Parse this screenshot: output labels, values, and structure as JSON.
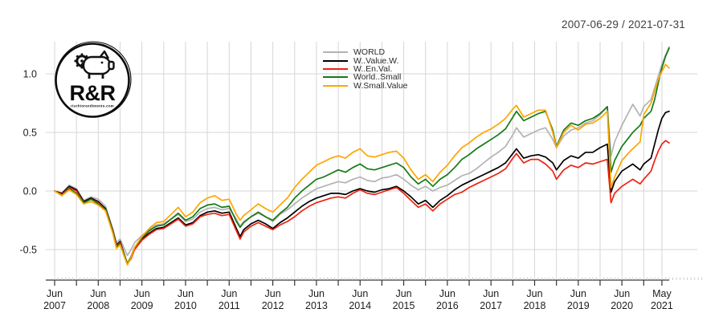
{
  "title": "2007-06-29 / 2021-07-31",
  "logo": {
    "text": "R&R",
    "subtext": "rischiorendimento.com"
  },
  "chart_data": {
    "type": "line",
    "title": "2007-06-29 / 2021-07-31",
    "xlabel": "",
    "ylabel": "",
    "x_unit": "months since 2007-06",
    "ylim": [
      -0.72,
      1.35
    ],
    "grid": true,
    "grid_color": "#d6d6d6",
    "axis_color": "#333333",
    "legend_position": "top-center",
    "y_ticks": [
      -0.5,
      0,
      0.5,
      1
    ],
    "x_ticks": [
      {
        "t": 0,
        "month": "Jun",
        "year": "2007"
      },
      {
        "t": 12,
        "month": "Jun",
        "year": "2008"
      },
      {
        "t": 24,
        "month": "Jun",
        "year": "2009"
      },
      {
        "t": 36,
        "month": "Jun",
        "year": "2010"
      },
      {
        "t": 48,
        "month": "Jun",
        "year": "2011"
      },
      {
        "t": 60,
        "month": "Jun",
        "year": "2012"
      },
      {
        "t": 72,
        "month": "Jun",
        "year": "2013"
      },
      {
        "t": 84,
        "month": "Jun",
        "year": "2014"
      },
      {
        "t": 96,
        "month": "Jun",
        "year": "2015"
      },
      {
        "t": 108,
        "month": "Jun",
        "year": "2016"
      },
      {
        "t": 120,
        "month": "Jun",
        "year": "2017"
      },
      {
        "t": 132,
        "month": "Jun",
        "year": "2018"
      },
      {
        "t": 144,
        "month": "Jun",
        "year": "2019"
      },
      {
        "t": 156,
        "month": "Jun",
        "year": "2020"
      },
      {
        "t": 167,
        "month": "May",
        "year": "2021"
      }
    ],
    "x_months": [
      0,
      2,
      4,
      6,
      8,
      10,
      12,
      14,
      16,
      17,
      18,
      20,
      21,
      22,
      24,
      26,
      28,
      30,
      32,
      34,
      36,
      38,
      40,
      42,
      44,
      46,
      48,
      50,
      51,
      52,
      54,
      56,
      58,
      60,
      62,
      64,
      66,
      68,
      70,
      72,
      74,
      76,
      78,
      80,
      82,
      84,
      86,
      88,
      90,
      92,
      94,
      96,
      98,
      100,
      102,
      104,
      106,
      108,
      110,
      112,
      114,
      116,
      118,
      120,
      122,
      124,
      126,
      127,
      129,
      131,
      133,
      135,
      137,
      138,
      140,
      142,
      144,
      146,
      148,
      150,
      152,
      153,
      154,
      156,
      158,
      159,
      161,
      162,
      164,
      165,
      166,
      167,
      168,
      169
    ],
    "series": [
      {
        "name": "WORLD",
        "color": "#b3b3b3",
        "values": [
          0.0,
          -0.02,
          0.05,
          0.02,
          -0.08,
          -0.05,
          -0.07,
          -0.13,
          -0.32,
          -0.44,
          -0.41,
          -0.55,
          -0.5,
          -0.44,
          -0.38,
          -0.33,
          -0.29,
          -0.28,
          -0.24,
          -0.2,
          -0.26,
          -0.24,
          -0.18,
          -0.15,
          -0.14,
          -0.16,
          -0.15,
          -0.24,
          -0.3,
          -0.26,
          -0.22,
          -0.19,
          -0.22,
          -0.26,
          -0.2,
          -0.16,
          -0.11,
          -0.06,
          -0.02,
          0.02,
          0.04,
          0.06,
          0.08,
          0.07,
          0.1,
          0.12,
          0.09,
          0.08,
          0.11,
          0.12,
          0.14,
          0.1,
          0.05,
          0.01,
          0.04,
          0.0,
          0.03,
          0.05,
          0.09,
          0.13,
          0.15,
          0.19,
          0.24,
          0.29,
          0.33,
          0.38,
          0.48,
          0.54,
          0.46,
          0.49,
          0.52,
          0.54,
          0.44,
          0.37,
          0.47,
          0.52,
          0.54,
          0.58,
          0.6,
          0.65,
          0.72,
          0.3,
          0.42,
          0.56,
          0.68,
          0.74,
          0.64,
          0.72,
          0.78,
          0.88,
          0.98,
          1.08,
          1.16,
          1.23
        ]
      },
      {
        "name": "W..Value.W.",
        "color": "#000000",
        "values": [
          0.0,
          -0.02,
          0.04,
          0.01,
          -0.09,
          -0.06,
          -0.09,
          -0.15,
          -0.34,
          -0.46,
          -0.43,
          -0.62,
          -0.57,
          -0.49,
          -0.41,
          -0.36,
          -0.32,
          -0.31,
          -0.27,
          -0.23,
          -0.29,
          -0.27,
          -0.21,
          -0.18,
          -0.17,
          -0.19,
          -0.18,
          -0.32,
          -0.39,
          -0.33,
          -0.28,
          -0.25,
          -0.28,
          -0.32,
          -0.27,
          -0.23,
          -0.18,
          -0.13,
          -0.09,
          -0.06,
          -0.04,
          -0.02,
          -0.02,
          -0.03,
          0.0,
          0.02,
          0.0,
          -0.01,
          0.01,
          0.02,
          0.04,
          0.0,
          -0.05,
          -0.11,
          -0.08,
          -0.14,
          -0.08,
          -0.04,
          0.01,
          0.05,
          0.08,
          0.11,
          0.14,
          0.17,
          0.2,
          0.24,
          0.32,
          0.36,
          0.28,
          0.3,
          0.31,
          0.29,
          0.24,
          0.18,
          0.26,
          0.3,
          0.28,
          0.33,
          0.33,
          0.37,
          0.4,
          -0.01,
          0.08,
          0.17,
          0.21,
          0.23,
          0.18,
          0.23,
          0.28,
          0.4,
          0.52,
          0.62,
          0.67,
          0.68
        ]
      },
      {
        "name": "W..En.Val.",
        "color": "#ee2211",
        "values": [
          0.0,
          -0.03,
          0.03,
          0.0,
          -0.1,
          -0.07,
          -0.1,
          -0.16,
          -0.35,
          -0.47,
          -0.44,
          -0.62,
          -0.58,
          -0.5,
          -0.42,
          -0.37,
          -0.33,
          -0.32,
          -0.28,
          -0.24,
          -0.3,
          -0.28,
          -0.22,
          -0.2,
          -0.19,
          -0.21,
          -0.2,
          -0.34,
          -0.41,
          -0.35,
          -0.3,
          -0.27,
          -0.3,
          -0.33,
          -0.29,
          -0.26,
          -0.22,
          -0.17,
          -0.13,
          -0.1,
          -0.08,
          -0.06,
          -0.05,
          -0.06,
          -0.02,
          0.01,
          -0.02,
          -0.03,
          -0.01,
          0.01,
          0.03,
          -0.02,
          -0.08,
          -0.14,
          -0.11,
          -0.17,
          -0.11,
          -0.07,
          -0.03,
          -0.01,
          0.03,
          0.06,
          0.09,
          0.12,
          0.15,
          0.19,
          0.28,
          0.32,
          0.24,
          0.27,
          0.27,
          0.23,
          0.17,
          0.1,
          0.18,
          0.22,
          0.2,
          0.24,
          0.23,
          0.25,
          0.27,
          -0.1,
          -0.02,
          0.04,
          0.08,
          0.1,
          0.06,
          0.1,
          0.17,
          0.26,
          0.34,
          0.4,
          0.43,
          0.41
        ]
      },
      {
        "name": "World..Small",
        "color": "#157a15",
        "values": [
          0.0,
          -0.04,
          0.02,
          -0.02,
          -0.1,
          -0.07,
          -0.11,
          -0.16,
          -0.35,
          -0.48,
          -0.45,
          -0.62,
          -0.56,
          -0.48,
          -0.4,
          -0.34,
          -0.3,
          -0.29,
          -0.24,
          -0.19,
          -0.25,
          -0.22,
          -0.15,
          -0.12,
          -0.11,
          -0.14,
          -0.13,
          -0.26,
          -0.31,
          -0.27,
          -0.22,
          -0.18,
          -0.22,
          -0.25,
          -0.19,
          -0.14,
          -0.06,
          0.0,
          0.05,
          0.1,
          0.12,
          0.15,
          0.18,
          0.16,
          0.2,
          0.23,
          0.19,
          0.18,
          0.2,
          0.22,
          0.24,
          0.2,
          0.12,
          0.06,
          0.1,
          0.04,
          0.1,
          0.14,
          0.2,
          0.27,
          0.31,
          0.36,
          0.4,
          0.44,
          0.48,
          0.53,
          0.63,
          0.68,
          0.6,
          0.63,
          0.66,
          0.68,
          0.52,
          0.38,
          0.52,
          0.58,
          0.56,
          0.6,
          0.62,
          0.66,
          0.72,
          0.16,
          0.26,
          0.38,
          0.46,
          0.5,
          0.56,
          0.62,
          0.68,
          0.78,
          0.92,
          1.05,
          1.15,
          1.22
        ]
      },
      {
        "name": "W.Small.Value",
        "color": "#ffa500",
        "values": [
          0.0,
          -0.04,
          0.01,
          -0.03,
          -0.11,
          -0.09,
          -0.12,
          -0.17,
          -0.36,
          -0.49,
          -0.46,
          -0.63,
          -0.57,
          -0.48,
          -0.39,
          -0.32,
          -0.27,
          -0.26,
          -0.2,
          -0.14,
          -0.22,
          -0.18,
          -0.1,
          -0.06,
          -0.04,
          -0.08,
          -0.07,
          -0.2,
          -0.25,
          -0.21,
          -0.16,
          -0.11,
          -0.15,
          -0.18,
          -0.12,
          -0.06,
          0.03,
          0.1,
          0.16,
          0.22,
          0.25,
          0.28,
          0.3,
          0.28,
          0.33,
          0.36,
          0.3,
          0.29,
          0.31,
          0.33,
          0.34,
          0.28,
          0.18,
          0.1,
          0.14,
          0.08,
          0.16,
          0.22,
          0.3,
          0.37,
          0.41,
          0.46,
          0.5,
          0.53,
          0.57,
          0.62,
          0.7,
          0.73,
          0.63,
          0.66,
          0.69,
          0.69,
          0.5,
          0.37,
          0.5,
          0.56,
          0.52,
          0.57,
          0.58,
          0.62,
          0.68,
          0.03,
          0.12,
          0.26,
          0.33,
          0.36,
          0.42,
          0.65,
          0.75,
          0.85,
          0.95,
          1.02,
          1.08,
          1.05
        ]
      }
    ]
  }
}
